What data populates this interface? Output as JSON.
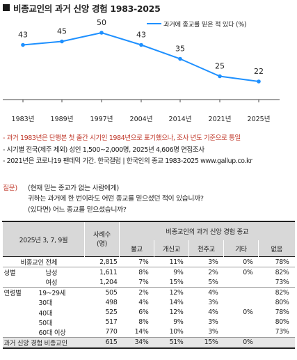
{
  "header": {
    "title": "비종교인의 과거 신앙 경험 1983-2025"
  },
  "chart_data": {
    "type": "line",
    "title": "비종교인의 과거 신앙 경험 1983-2025",
    "categories": [
      "1983년",
      "1989년",
      "1997년",
      "2004년",
      "2014년",
      "2021년",
      "2025년"
    ],
    "series": [
      {
        "name": "과거에 종교를 믿은 적 있다 (%)",
        "values": [
          43,
          45,
          50,
          43,
          35,
          25,
          22
        ],
        "color": "#1e90ff"
      }
    ],
    "ylim": [
      0,
      60
    ],
    "grid": false,
    "legend_position": "top-right"
  },
  "notes": [
    "- 과거 1983년은 단행본 첫 출간 시기인 1984년으로 표기했으나, 조사 년도 기준으로 통일",
    "- 시기별 전국(제주 제외) 성인 1,500~2,000명, 2025년 4,606명 면접조사",
    "- 2021년은 코로나19 팬데믹 기간. 한국갤럽 | 한국인의 종교 1983-2025 www.gallup.co.kr"
  ],
  "question": {
    "label": "질문)",
    "lines": [
      "(현재 믿는 종교가 없는 사람에게)",
      "귀하는 과거에 한 번이라도 어떤 종교를 믿으셨던 적이 있습니까?",
      "(있다면) 어느 종교를 믿으셨습니까?"
    ]
  },
  "table": {
    "period": "2025년 3, 7, 9월",
    "n_label": "사례수\n(명)",
    "group_header": "비종교인의 과거 신앙 경험 종교",
    "columns": [
      "불교",
      "개신교",
      "천주교",
      "기타",
      "없음"
    ],
    "rows": [
      {
        "cat": "비종교인 전체",
        "sub": "",
        "n": "2,815",
        "v": [
          "7%",
          "11%",
          "3%",
          "0%",
          "78%"
        ]
      },
      {
        "cat": "성별",
        "sub": "남성",
        "n": "1,611",
        "v": [
          "8%",
          "9%",
          "2%",
          "0%",
          "82%"
        ]
      },
      {
        "cat": "",
        "sub": "여성",
        "n": "1,204",
        "v": [
          "7%",
          "15%",
          "5%",
          "",
          "73%"
        ]
      },
      {
        "cat": "연령별",
        "sub": "19~29세",
        "n": "505",
        "v": [
          "2%",
          "12%",
          "4%",
          "",
          "82%"
        ]
      },
      {
        "cat": "",
        "sub": "30대",
        "n": "498",
        "v": [
          "4%",
          "14%",
          "3%",
          "",
          "80%"
        ]
      },
      {
        "cat": "",
        "sub": "40대",
        "n": "525",
        "v": [
          "6%",
          "12%",
          "4%",
          "0%",
          "78%"
        ]
      },
      {
        "cat": "",
        "sub": "50대",
        "n": "517",
        "v": [
          "8%",
          "9%",
          "3%",
          "",
          "80%"
        ]
      },
      {
        "cat": "",
        "sub": "60대 이상",
        "n": "770",
        "v": [
          "14%",
          "10%",
          "3%",
          "",
          "73%"
        ]
      },
      {
        "cat": "과거 신앙 경험 비종교인",
        "sub": "",
        "n": "615",
        "v": [
          "34%",
          "51%",
          "15%",
          "0%",
          ""
        ]
      }
    ]
  }
}
